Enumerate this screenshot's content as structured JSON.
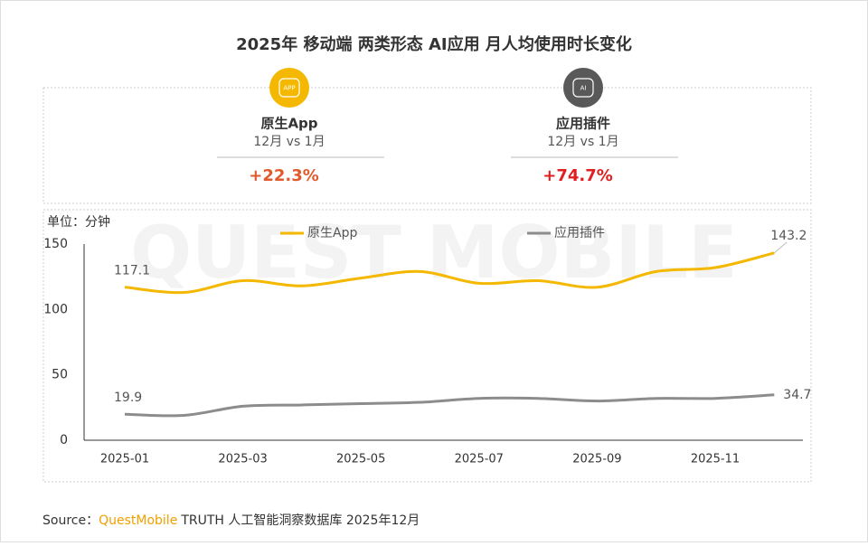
{
  "title": "2025年 移动端 两类形态 AI应用 月人均使用时长变化",
  "cards": [
    {
      "icon": "APP",
      "label": "原生App",
      "compare": "12月 vs 1月",
      "change": "+22.3%"
    },
    {
      "icon": "AI",
      "label": "应用插件",
      "compare": "12月 vs 1月",
      "change": "+74.7%"
    }
  ],
  "watermark": "QUEST MOBILE",
  "chart_data": {
    "type": "line",
    "unit": "单位：分钟",
    "categories": [
      "2025-01",
      null,
      "2025-03",
      null,
      "2025-05",
      null,
      "2025-07",
      null,
      "2025-09",
      null,
      "2025-11",
      null
    ],
    "series": [
      {
        "name": "原生App",
        "color": "#f5b800",
        "values": [
          117.1,
          113,
          122,
          118,
          124,
          129,
          120,
          122,
          117,
          129,
          132,
          143.2
        ]
      },
      {
        "name": "应用插件",
        "color": "#8c8c8c",
        "values": [
          19.9,
          19,
          26,
          27,
          28,
          29,
          32,
          32,
          30,
          32,
          32,
          34.7
        ]
      }
    ],
    "ylim": [
      0,
      150
    ],
    "yticks": [
      0,
      50,
      100,
      150
    ],
    "grid": false,
    "legend": "top"
  },
  "source": {
    "prefix": "Source：",
    "brand": "QuestMobile",
    "text": "TRUTH 人工智能洞察数据库 2025年12月"
  }
}
